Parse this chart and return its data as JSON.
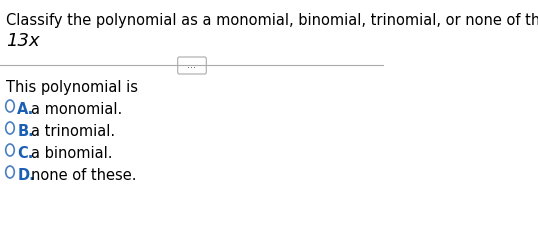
{
  "question": "Classify the polynomial as a monomial, binomial, trinomial, or none of these.",
  "polynomial": "13x",
  "prompt": "This polynomial is",
  "options": [
    {
      "label": "A.",
      "text": "a monomial."
    },
    {
      "label": "B.",
      "text": "a trinomial."
    },
    {
      "label": "C.",
      "text": "a binomial."
    },
    {
      "label": "D.",
      "text": "none of these."
    }
  ],
  "bg_color": "#ffffff",
  "question_color": "#000000",
  "poly_color": "#000000",
  "prompt_color": "#000000",
  "label_color": "#1a5fb4",
  "option_text_color": "#000000",
  "circle_color": "#4a7fc1",
  "divider_color": "#aaaaaa",
  "dots_color": "#555555",
  "question_fontsize": 10.5,
  "poly_fontsize": 13,
  "prompt_fontsize": 10.5,
  "option_fontsize": 10.5,
  "label_fontsize": 10.5
}
